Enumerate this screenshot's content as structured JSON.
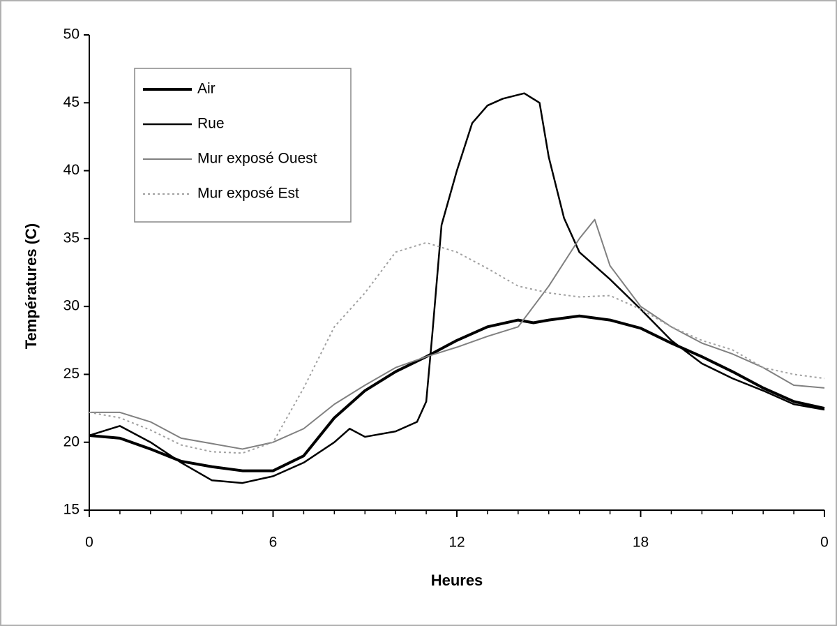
{
  "chart_data": {
    "type": "line",
    "xlabel": "Heures",
    "ylabel": "Températures (C)",
    "xlim": [
      0,
      24
    ],
    "ylim": [
      15,
      50
    ],
    "xticks": [
      0,
      6,
      12,
      18,
      {
        "value": 24,
        "label": "0"
      }
    ],
    "yticks": [
      15,
      20,
      25,
      30,
      35,
      40,
      45,
      50
    ],
    "legend": "upper left",
    "series": [
      {
        "name": "Air",
        "color": "#000000",
        "width": 4,
        "style": "solid",
        "x": [
          0,
          1,
          2,
          3,
          4,
          5,
          6,
          7,
          8,
          9,
          10,
          11,
          12,
          13,
          14,
          14.5,
          15,
          16,
          17,
          18,
          19,
          20,
          21,
          22,
          23,
          24
        ],
        "values": [
          20.5,
          20.3,
          19.5,
          18.6,
          18.2,
          17.9,
          17.9,
          19,
          21.8,
          23.8,
          25.2,
          26.3,
          27.5,
          28.5,
          29,
          28.8,
          29,
          29.3,
          29,
          28.4,
          27.3,
          26.3,
          25.2,
          24,
          23,
          22.5
        ]
      },
      {
        "name": "Rue",
        "color": "#000000",
        "width": 2.5,
        "style": "solid",
        "x": [
          0,
          1,
          2,
          3,
          4,
          5,
          6,
          7,
          8,
          8.5,
          9,
          10,
          10.7,
          11,
          11.2,
          11.5,
          12,
          12.5,
          13,
          13.5,
          14.2,
          14.7,
          15,
          15.5,
          16,
          17,
          18,
          19,
          20,
          21,
          22,
          23,
          24
        ],
        "values": [
          20.5,
          21.2,
          20,
          18.5,
          17.2,
          17,
          17.5,
          18.5,
          20,
          21,
          20.4,
          20.8,
          21.5,
          23,
          28,
          36,
          40,
          43.5,
          44.8,
          45.3,
          45.7,
          45,
          41,
          36.5,
          34,
          32,
          29.8,
          27.5,
          25.8,
          24.7,
          23.8,
          22.8,
          22.4
        ]
      },
      {
        "name": "Mur exposé Ouest",
        "color": "#808080",
        "width": 2,
        "style": "solid",
        "x": [
          0,
          1,
          2,
          3,
          4,
          5,
          6,
          7,
          8,
          9,
          10,
          11,
          12,
          13,
          14,
          15,
          16,
          16.5,
          17,
          18,
          19,
          20,
          21,
          22,
          23,
          24
        ],
        "values": [
          22.2,
          22.2,
          21.5,
          20.3,
          19.9,
          19.5,
          20,
          21,
          22.8,
          24.2,
          25.5,
          26.3,
          27,
          27.8,
          28.5,
          31.5,
          35,
          36.4,
          33,
          30,
          28.5,
          27.3,
          26.5,
          25.5,
          24.2,
          24
        ]
      },
      {
        "name": "Mur exposé Est",
        "color": "#a0a0a0",
        "width": 2,
        "style": "dotted",
        "x": [
          0,
          1,
          2,
          3,
          4,
          5,
          6,
          7,
          8,
          9,
          10,
          11,
          12,
          13,
          14,
          15,
          16,
          17,
          18,
          19,
          20,
          21,
          22,
          23,
          24
        ],
        "values": [
          22.2,
          21.8,
          20.9,
          19.8,
          19.3,
          19.2,
          20,
          24,
          28.5,
          31,
          34,
          34.7,
          34,
          32.8,
          31.5,
          31,
          30.7,
          30.8,
          29.8,
          28.5,
          27.5,
          26.8,
          25.5,
          25,
          24.7
        ]
      }
    ]
  }
}
